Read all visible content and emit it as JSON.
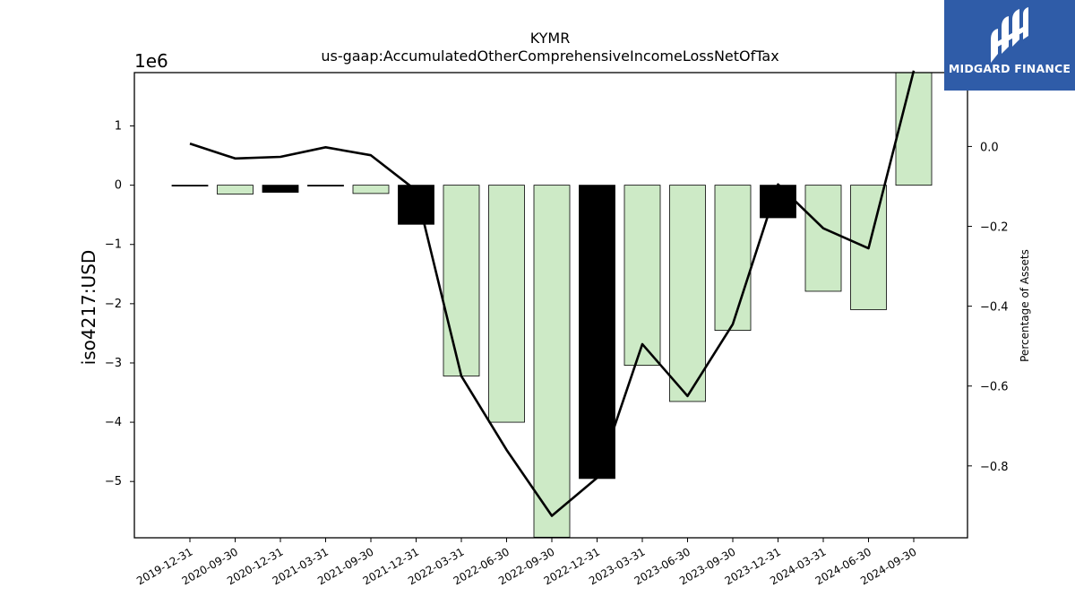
{
  "chart_data": {
    "type": "bar",
    "title": "KYMR",
    "subtitle": "us-gaap:AccumulatedOtherComprehensiveIncomeLossNetOfTax",
    "ylabel": "iso4217:USD",
    "y2label": "Percentage of Assets",
    "y_offset_label": "1e6",
    "y_scale": 1000000,
    "ylim": [
      -5950000,
      1900000
    ],
    "y2lim": [
      -0.98,
      0.185
    ],
    "yticks": [
      1,
      0,
      -1,
      -2,
      -3,
      -4,
      -5
    ],
    "yticks_labels": [
      "1",
      "0",
      "−1",
      "−2",
      "−3",
      "−4",
      "−5"
    ],
    "y2ticks": [
      0.0,
      -0.2,
      -0.4,
      -0.6,
      -0.8
    ],
    "y2ticks_labels": [
      "0.0",
      "−0.2",
      "−0.4",
      "−0.6",
      "−0.8"
    ],
    "categories": [
      "2019-12-31",
      "2020-09-30",
      "2020-12-31",
      "2021-03-31",
      "2021-09-30",
      "2021-12-31",
      "2022-03-31",
      "2022-06-30",
      "2022-09-30",
      "2022-12-31",
      "2023-03-31",
      "2023-06-30",
      "2023-09-30",
      "2023-12-31",
      "2024-03-31",
      "2024-06-30",
      "2024-09-30"
    ],
    "series": [
      {
        "type": "bar",
        "values": [
          -10000,
          -150000,
          -120000,
          -5000,
          -140000,
          -660000,
          -3220000,
          -4000000,
          -5940000,
          -4950000,
          -3040000,
          -3650000,
          -2450000,
          -550000,
          -1790000,
          -2100000,
          1950000
        ],
        "colors": [
          "#000000",
          "#cdeac6",
          "#000000",
          "#000000",
          "#cdeac6",
          "#000000",
          "#cdeac6",
          "#cdeac6",
          "#cdeac6",
          "#000000",
          "#cdeac6",
          "#cdeac6",
          "#cdeac6",
          "#000000",
          "#cdeac6",
          "#cdeac6",
          "#cdeac6"
        ]
      },
      {
        "type": "line",
        "axis": "secondary",
        "values": [
          0.007,
          -0.03,
          -0.026,
          -0.002,
          -0.022,
          -0.11,
          -0.575,
          -0.76,
          -0.925,
          -0.83,
          -0.495,
          -0.625,
          -0.445,
          -0.095,
          -0.205,
          -0.255,
          0.19
        ],
        "color": "#000000"
      }
    ],
    "grid": false,
    "legend": "none"
  },
  "logo": {
    "text": "MIDGARD FINANCE",
    "color": "#2f5ca8"
  }
}
